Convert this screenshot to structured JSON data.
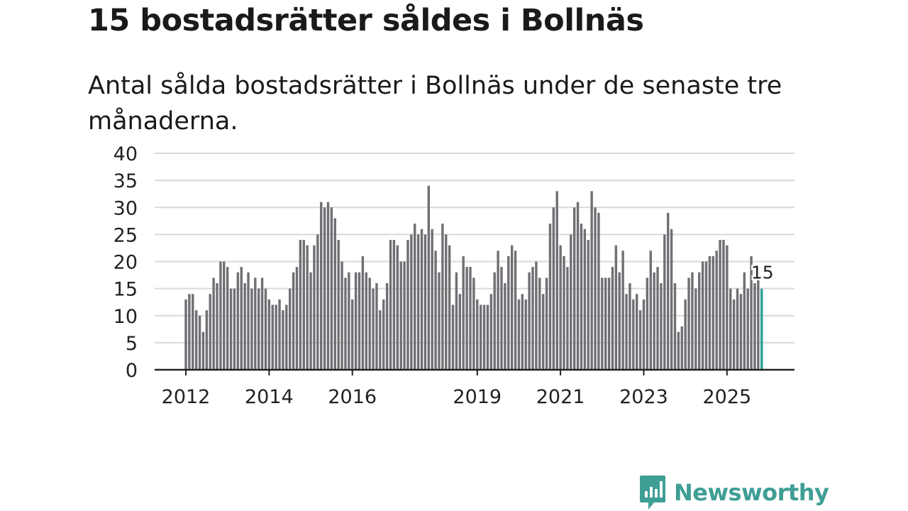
{
  "title": "15 bostadsrätter såldes i Bollnäs",
  "subtitle": "Antal sålda bostadsrätter i Bollnäs under de senaste tre månaderna.",
  "brand": "Newsworthy",
  "colors": {
    "bar": "#6f6f74",
    "highlight": "#2a9d96",
    "grid": "#d9d9d9",
    "axis": "#222222",
    "brand": "#3f9e95"
  },
  "chart_data": {
    "type": "bar",
    "title": "15 bostadsrätter såldes i Bollnäs",
    "xlabel": "",
    "ylabel": "",
    "ylim": [
      0,
      40
    ],
    "yticks": [
      0,
      5,
      10,
      15,
      20,
      25,
      30,
      35,
      40
    ],
    "x_tick_labels": [
      {
        "label": "2012",
        "index": 0
      },
      {
        "label": "2014",
        "index": 24
      },
      {
        "label": "2016",
        "index": 48
      },
      {
        "label": "2019",
        "index": 84
      },
      {
        "label": "2021",
        "index": 108
      },
      {
        "label": "2023",
        "index": 132
      },
      {
        "label": "2025",
        "index": 156
      }
    ],
    "annotation": {
      "text": "15",
      "index": 166
    },
    "highlight_index": 166,
    "grid": true,
    "period": "rolling 3 months, monthly, Jan 2012 – Nov 2025",
    "values": [
      13,
      14,
      14,
      11,
      10,
      7,
      11,
      14,
      17,
      16,
      20,
      20,
      19,
      15,
      15,
      18,
      19,
      16,
      18,
      15,
      17,
      15,
      17,
      15,
      13,
      12,
      12,
      13,
      11,
      12,
      15,
      18,
      19,
      24,
      24,
      23,
      18,
      23,
      25,
      31,
      30,
      31,
      30,
      28,
      24,
      20,
      17,
      18,
      13,
      18,
      18,
      21,
      18,
      17,
      15,
      16,
      11,
      13,
      16,
      24,
      24,
      23,
      20,
      20,
      24,
      25,
      27,
      25,
      26,
      25,
      34,
      26,
      22,
      18,
      27,
      25,
      23,
      12,
      18,
      14,
      21,
      19,
      19,
      17,
      13,
      12,
      12,
      12,
      14,
      18,
      22,
      19,
      16,
      21,
      23,
      22,
      13,
      14,
      13,
      18,
      19,
      20,
      17,
      14,
      17,
      27,
      30,
      33,
      23,
      21,
      19,
      25,
      30,
      31,
      27,
      26,
      24,
      33,
      30,
      29,
      17,
      17,
      17,
      19,
      23,
      18,
      22,
      14,
      16,
      13,
      14,
      11,
      13,
      17,
      22,
      18,
      19,
      16,
      25,
      29,
      26,
      16,
      7,
      8,
      13,
      17,
      18,
      15,
      18,
      20,
      20,
      21,
      21,
      22,
      24,
      24,
      23,
      15,
      13,
      15,
      14,
      18,
      15,
      21,
      16,
      17,
      15
    ]
  }
}
